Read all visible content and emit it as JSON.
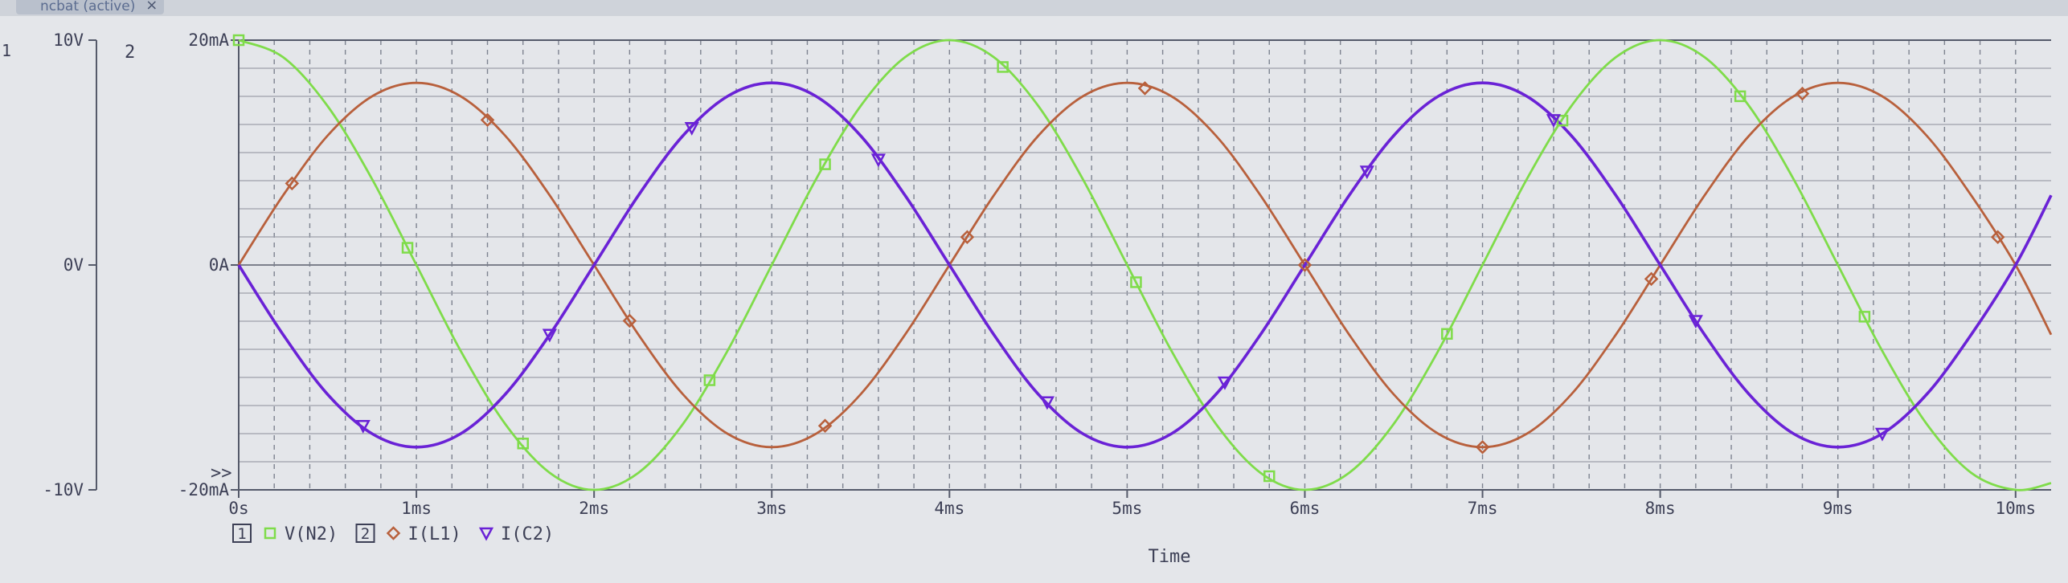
{
  "window": {
    "tab_title": "ncbat (active)",
    "close_glyph": "×"
  },
  "plot_markers": {
    "left_edge": "1",
    "axis_num_2": "2",
    "overflow": ">>"
  },
  "colors": {
    "vn2": "#7fdc4a",
    "il1": "#b8603c",
    "ic2": "#6a22d6",
    "grid": "#7e8390",
    "plot_bg": "#e4e6ea"
  },
  "legend": [
    {
      "box": "1",
      "symbol": "□",
      "symbol_icon": "square-marker-icon",
      "label": "V(N2)",
      "color": "#7fdc4a"
    },
    {
      "box": "2",
      "symbol": "◇",
      "symbol_icon": "diamond-marker-icon",
      "label": "I(L1)",
      "color": "#b8603c"
    },
    {
      "box": "",
      "symbol": "▽",
      "symbol_icon": "triangle-marker-icon",
      "label": "I(C2)",
      "color": "#6a22d6"
    }
  ],
  "chart_data": {
    "type": "line",
    "xlabel": "Time",
    "xlim": [
      0,
      10.2
    ],
    "x_ticks": [
      {
        "value": 0,
        "label": "0s"
      },
      {
        "value": 1,
        "label": "1ms"
      },
      {
        "value": 2,
        "label": "2ms"
      },
      {
        "value": 3,
        "label": "3ms"
      },
      {
        "value": 4,
        "label": "4ms"
      },
      {
        "value": 5,
        "label": "5ms"
      },
      {
        "value": 6,
        "label": "6ms"
      },
      {
        "value": 7,
        "label": "7ms"
      },
      {
        "value": 8,
        "label": "8ms"
      },
      {
        "value": 9,
        "label": "9ms"
      },
      {
        "value": 10,
        "label": "10ms"
      }
    ],
    "y_axes": [
      {
        "id": "1",
        "ylim": [
          -10,
          10
        ],
        "unit": "V",
        "ticks": [
          {
            "value": 10,
            "label": "10V"
          },
          {
            "value": 0,
            "label": "0V"
          },
          {
            "value": -10,
            "label": "-10V"
          }
        ]
      },
      {
        "id": "2",
        "ylim": [
          -20,
          20
        ],
        "unit": "mA",
        "ticks": [
          {
            "value": 20,
            "label": "20mA"
          },
          {
            "value": 0,
            "label": "0A"
          },
          {
            "value": -20,
            "label": "-20mA"
          }
        ]
      }
    ],
    "grid": true,
    "series": [
      {
        "name": "V(N2)",
        "axis": "1",
        "color": "#7fdc4a",
        "marker": "square",
        "x": [
          0,
          0.25,
          0.5,
          0.75,
          1,
          1.25,
          1.5,
          1.75,
          2,
          2.25,
          2.5,
          2.75,
          3,
          3.25,
          3.5,
          3.75,
          4,
          4.25,
          4.5,
          4.75,
          5,
          5.25,
          5.5,
          5.75,
          6,
          6.25,
          6.5,
          6.75,
          7,
          7.25,
          7.5,
          7.75,
          8,
          8.25,
          8.5,
          8.75,
          9,
          9.25,
          9.5,
          9.75,
          10,
          10.2
        ],
        "y": [
          10,
          9.24,
          7.07,
          3.83,
          0,
          -3.83,
          -7.07,
          -9.24,
          -10,
          -9.24,
          -7.07,
          -3.83,
          0,
          3.83,
          7.07,
          9.24,
          10,
          9.24,
          7.07,
          3.83,
          0,
          -3.83,
          -7.07,
          -9.24,
          -10,
          -9.24,
          -7.07,
          -3.83,
          0,
          3.83,
          7.07,
          9.24,
          10,
          9.24,
          7.07,
          3.83,
          0,
          -3.83,
          -7.07,
          -9.24,
          -10,
          -9.7
        ],
        "marker_x": [
          0,
          0.95,
          1.6,
          2.65,
          3.3,
          4.3,
          5.05,
          5.8,
          6.8,
          7.45,
          8.45,
          9.15
        ]
      },
      {
        "name": "I(L1)",
        "axis": "2",
        "color": "#b8603c",
        "marker": "diamond",
        "x": [
          0,
          0.25,
          0.5,
          0.75,
          1,
          1.25,
          1.5,
          1.75,
          2,
          2.25,
          2.5,
          2.75,
          3,
          3.25,
          3.5,
          3.75,
          4,
          4.25,
          4.5,
          4.75,
          5,
          5.25,
          5.5,
          5.75,
          6,
          6.25,
          6.5,
          6.75,
          7,
          7.25,
          7.5,
          7.75,
          8,
          8.25,
          8.5,
          8.75,
          9,
          9.25,
          9.5,
          9.75,
          10,
          10.2
        ],
        "y": [
          0,
          6.2,
          11.5,
          15,
          16.2,
          15,
          11.5,
          6.2,
          0,
          -6.2,
          -11.5,
          -15,
          -16.2,
          -15,
          -11.5,
          -6.2,
          0,
          6.2,
          11.5,
          15,
          16.2,
          15,
          11.5,
          6.2,
          0,
          -6.2,
          -11.5,
          -15,
          -16.2,
          -15,
          -11.5,
          -6.2,
          0,
          6.2,
          11.5,
          15,
          16.2,
          15,
          11.5,
          6.2,
          0,
          -6.2
        ],
        "marker_x": [
          0.3,
          1.4,
          2.2,
          3.3,
          4.1,
          5.1,
          6.0,
          7.0,
          7.95,
          8.8,
          9.9
        ]
      },
      {
        "name": "I(C2)",
        "axis": "2",
        "color": "#6a22d6",
        "marker": "triangle",
        "x": [
          0,
          0.25,
          0.5,
          0.75,
          1,
          1.25,
          1.5,
          1.75,
          2,
          2.25,
          2.5,
          2.75,
          3,
          3.25,
          3.5,
          3.75,
          4,
          4.25,
          4.5,
          4.75,
          5,
          5.25,
          5.5,
          5.75,
          6,
          6.25,
          6.5,
          6.75,
          7,
          7.25,
          7.5,
          7.75,
          8,
          8.25,
          8.5,
          8.75,
          9,
          9.25,
          9.5,
          9.75,
          10,
          10.2
        ],
        "y": [
          0,
          -6.2,
          -11.5,
          -15,
          -16.2,
          -15,
          -11.5,
          -6.2,
          0,
          6.2,
          11.5,
          15,
          16.2,
          15,
          11.5,
          6.2,
          0,
          -6.2,
          -11.5,
          -15,
          -16.2,
          -15,
          -11.5,
          -6.2,
          0,
          6.2,
          11.5,
          15,
          16.2,
          15,
          11.5,
          6.2,
          0,
          -6.2,
          -11.5,
          -15,
          -16.2,
          -15,
          -11.5,
          -6.2,
          0,
          6.2
        ],
        "marker_x": [
          0.7,
          1.75,
          2.55,
          3.6,
          4.55,
          5.55,
          6.35,
          7.4,
          8.2,
          9.25
        ]
      }
    ]
  }
}
